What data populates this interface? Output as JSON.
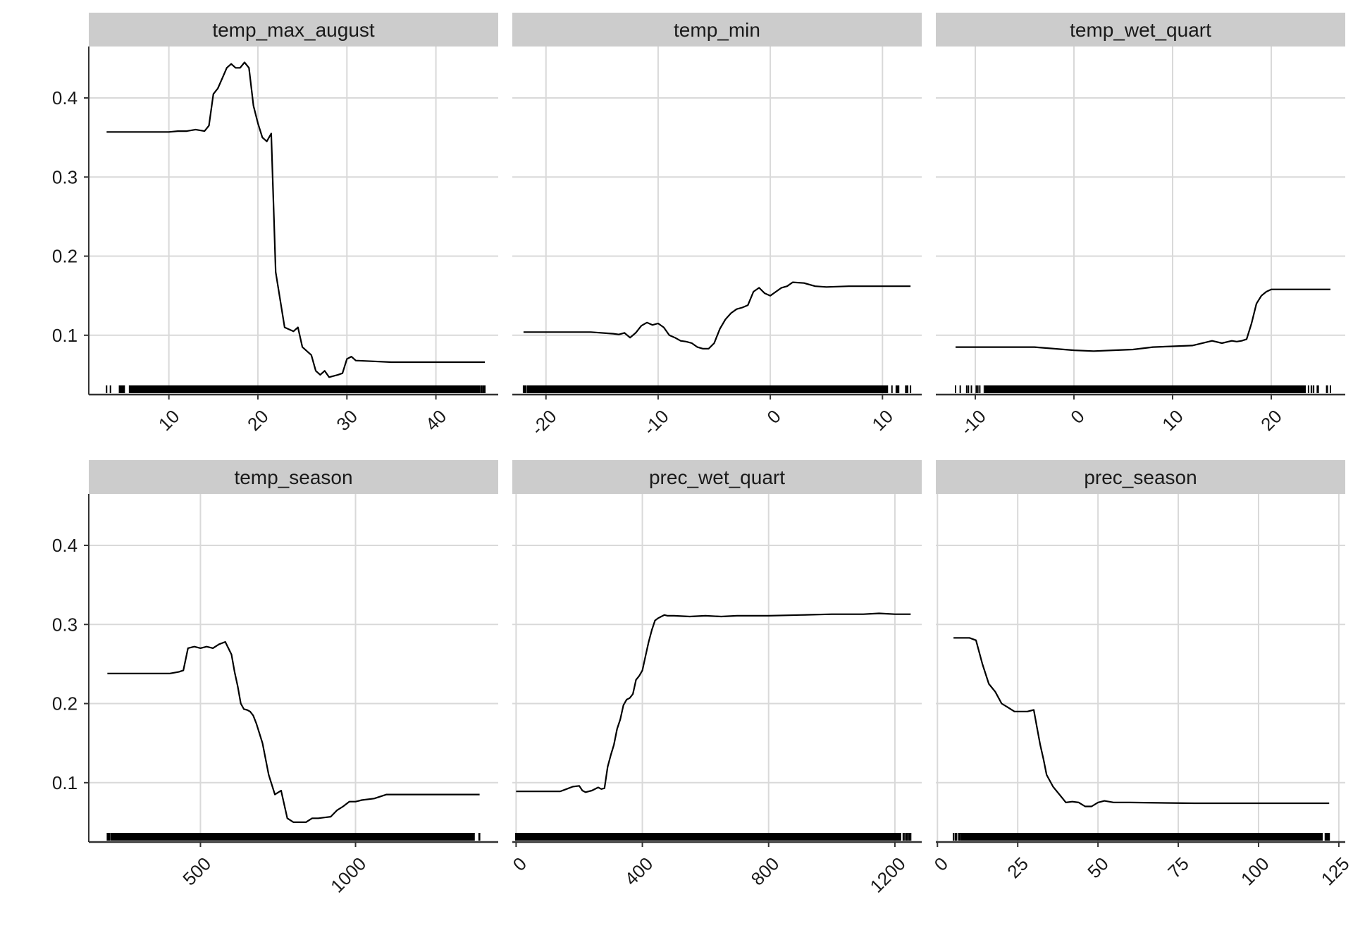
{
  "chart_data": [
    {
      "type": "line",
      "facet": "temp_max_august",
      "title": "temp_max_august",
      "xlim": [
        1,
        47
      ],
      "ylim": [
        0.025,
        0.465
      ],
      "x_ticks": [
        10,
        20,
        30,
        40
      ],
      "y_ticks": [
        0.1,
        0.2,
        0.3,
        0.4
      ],
      "x": [
        3,
        6,
        8,
        10,
        11,
        12,
        13,
        14,
        14.5,
        15,
        15.5,
        16,
        16.5,
        17,
        17.5,
        18,
        18.5,
        19,
        19.5,
        20,
        20.5,
        21,
        21.5,
        22,
        23,
        24,
        24.5,
        25,
        26,
        26.5,
        27,
        27.5,
        28,
        29,
        29.5,
        30,
        30.5,
        31,
        33,
        35,
        40,
        45.5
      ],
      "y": [
        0.357,
        0.357,
        0.357,
        0.357,
        0.358,
        0.358,
        0.36,
        0.358,
        0.365,
        0.405,
        0.412,
        0.425,
        0.438,
        0.443,
        0.438,
        0.438,
        0.445,
        0.438,
        0.39,
        0.368,
        0.35,
        0.345,
        0.355,
        0.18,
        0.11,
        0.105,
        0.11,
        0.085,
        0.075,
        0.055,
        0.05,
        0.055,
        0.047,
        0.05,
        0.052,
        0.07,
        0.073,
        0.068,
        0.067,
        0.066,
        0.066,
        0.066
      ],
      "rug": {
        "min": 3,
        "max": 45.5,
        "dense_min": 5.5,
        "dense_max": 45
      },
      "xlabel": "",
      "ylabel": ""
    },
    {
      "type": "line",
      "facet": "temp_min",
      "title": "temp_min",
      "xlim": [
        -23,
        13.5
      ],
      "ylim": [
        0.025,
        0.465
      ],
      "x_ticks": [
        -20,
        -10,
        0,
        10
      ],
      "y_ticks": [
        0.1,
        0.2,
        0.3,
        0.4
      ],
      "x": [
        -22,
        -20,
        -18,
        -16,
        -14,
        -13.5,
        -13,
        -12.5,
        -12,
        -11.5,
        -11,
        -10.5,
        -10,
        -9.5,
        -9,
        -8.5,
        -8,
        -7.5,
        -7,
        -6.5,
        -6,
        -5.5,
        -5,
        -4.5,
        -4,
        -3.5,
        -3,
        -2.5,
        -2,
        -1.5,
        -1,
        -0.5,
        0,
        0.5,
        1,
        1.5,
        2,
        3,
        4,
        5,
        7,
        9,
        12.5
      ],
      "y": [
        0.104,
        0.104,
        0.104,
        0.104,
        0.102,
        0.101,
        0.103,
        0.097,
        0.103,
        0.112,
        0.116,
        0.113,
        0.115,
        0.11,
        0.1,
        0.097,
        0.093,
        0.092,
        0.09,
        0.085,
        0.083,
        0.083,
        0.09,
        0.108,
        0.12,
        0.128,
        0.133,
        0.135,
        0.138,
        0.155,
        0.16,
        0.153,
        0.15,
        0.155,
        0.16,
        0.162,
        0.167,
        0.166,
        0.162,
        0.161,
        0.162,
        0.162,
        0.162
      ],
      "rug": {
        "min": -22,
        "max": 12.5,
        "dense_min": -21.5,
        "dense_max": 10.5
      },
      "xlabel": "",
      "ylabel": ""
    },
    {
      "type": "line",
      "facet": "temp_wet_quart",
      "title": "temp_wet_quart",
      "xlim": [
        -14,
        27.5
      ],
      "ylim": [
        0.025,
        0.465
      ],
      "x_ticks": [
        -10,
        0,
        10,
        20
      ],
      "y_ticks": [
        0.1,
        0.2,
        0.3,
        0.4
      ],
      "x": [
        -12,
        -8,
        -4,
        0,
        2,
        4,
        6,
        8,
        10,
        12,
        14,
        15,
        16,
        16.5,
        17,
        17.5,
        18,
        18.5,
        19,
        19.5,
        20,
        22,
        26
      ],
      "y": [
        0.085,
        0.085,
        0.085,
        0.081,
        0.08,
        0.081,
        0.082,
        0.085,
        0.086,
        0.087,
        0.093,
        0.09,
        0.093,
        0.092,
        0.093,
        0.095,
        0.115,
        0.14,
        0.15,
        0.155,
        0.158,
        0.158,
        0.158
      ],
      "rug": {
        "min": -12,
        "max": 26,
        "dense_min": -9,
        "dense_max": 23.5
      },
      "xlabel": "",
      "ylabel": ""
    },
    {
      "type": "line",
      "facet": "temp_season",
      "title": "temp_season",
      "xlim": [
        140,
        1460
      ],
      "ylim": [
        0.025,
        0.465
      ],
      "x_ticks": [
        500,
        1000
      ],
      "y_ticks": [
        0.1,
        0.2,
        0.3,
        0.4
      ],
      "x": [
        200,
        300,
        350,
        400,
        430,
        445,
        460,
        480,
        500,
        520,
        540,
        560,
        580,
        600,
        610,
        620,
        630,
        640,
        650,
        660,
        670,
        680,
        700,
        720,
        740,
        760,
        780,
        800,
        820,
        840,
        860,
        880,
        900,
        920,
        940,
        960,
        980,
        1000,
        1020,
        1060,
        1100,
        1400
      ],
      "y": [
        0.238,
        0.238,
        0.238,
        0.238,
        0.24,
        0.242,
        0.27,
        0.272,
        0.27,
        0.272,
        0.27,
        0.275,
        0.278,
        0.262,
        0.24,
        0.222,
        0.2,
        0.193,
        0.192,
        0.19,
        0.185,
        0.175,
        0.15,
        0.11,
        0.085,
        0.09,
        0.055,
        0.05,
        0.05,
        0.05,
        0.055,
        0.055,
        0.056,
        0.057,
        0.065,
        0.07,
        0.076,
        0.076,
        0.078,
        0.08,
        0.085,
        0.085
      ],
      "rug": {
        "min": 200,
        "max": 1400,
        "dense_min": 210,
        "dense_max": 1370
      },
      "xlabel": "",
      "ylabel": ""
    },
    {
      "type": "line",
      "facet": "prec_wet_quart",
      "title": "prec_wet_quart",
      "xlim": [
        -12,
        1285
      ],
      "ylim": [
        0.025,
        0.465
      ],
      "x_ticks": [
        0,
        400,
        800,
        1200
      ],
      "y_ticks": [
        0.1,
        0.2,
        0.3,
        0.4
      ],
      "x": [
        0,
        100,
        140,
        160,
        180,
        200,
        210,
        220,
        240,
        260,
        270,
        280,
        290,
        300,
        310,
        320,
        330,
        340,
        350,
        360,
        370,
        380,
        390,
        400,
        410,
        420,
        430,
        440,
        450,
        460,
        470,
        480,
        500,
        550,
        600,
        650,
        700,
        750,
        800,
        900,
        1000,
        1100,
        1150,
        1200,
        1250
      ],
      "y": [
        0.089,
        0.089,
        0.089,
        0.092,
        0.095,
        0.096,
        0.09,
        0.088,
        0.09,
        0.094,
        0.092,
        0.093,
        0.12,
        0.135,
        0.148,
        0.168,
        0.18,
        0.198,
        0.205,
        0.207,
        0.212,
        0.23,
        0.235,
        0.242,
        0.26,
        0.278,
        0.293,
        0.305,
        0.308,
        0.31,
        0.312,
        0.311,
        0.311,
        0.31,
        0.311,
        0.31,
        0.311,
        0.311,
        0.311,
        0.312,
        0.313,
        0.313,
        0.314,
        0.313,
        0.313
      ],
      "rug": {
        "min": 0,
        "max": 1250,
        "dense_min": 0,
        "dense_max": 1220
      },
      "xlabel": "",
      "ylabel": ""
    },
    {
      "type": "line",
      "facet": "prec_season",
      "title": "prec_season",
      "xlim": [
        -0.5,
        127
      ],
      "ylim": [
        0.025,
        0.465
      ],
      "x_ticks": [
        0,
        25,
        50,
        75,
        100,
        125
      ],
      "y_ticks": [
        0.1,
        0.2,
        0.3,
        0.4
      ],
      "x": [
        5,
        10,
        12,
        14,
        16,
        18,
        20,
        22,
        24,
        26,
        28,
        30,
        31,
        32,
        33,
        34,
        36,
        38,
        40,
        42,
        44,
        46,
        48,
        50,
        52,
        55,
        60,
        80,
        100,
        122
      ],
      "y": [
        0.283,
        0.283,
        0.28,
        0.25,
        0.225,
        0.215,
        0.2,
        0.195,
        0.19,
        0.19,
        0.19,
        0.192,
        0.17,
        0.148,
        0.13,
        0.11,
        0.095,
        0.085,
        0.075,
        0.076,
        0.075,
        0.07,
        0.07,
        0.075,
        0.077,
        0.075,
        0.075,
        0.074,
        0.074,
        0.074
      ],
      "rug": {
        "min": 5,
        "max": 122,
        "dense_min": 8,
        "dense_max": 120
      },
      "xlabel": "",
      "ylabel": ""
    }
  ],
  "style": {
    "line_color": "#000000",
    "grid_color": "#d9d9d9",
    "strip_color": "#cccccc",
    "axis_color": "#333333",
    "rug_color": "#000000"
  }
}
